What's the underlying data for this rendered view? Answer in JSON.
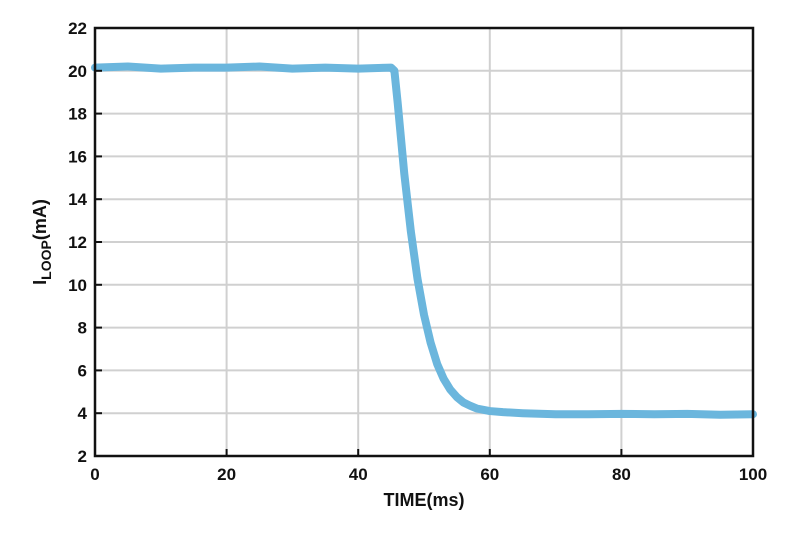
{
  "chart_data": {
    "type": "line",
    "title": "",
    "xlabel": "TIME(ms)",
    "ylabel_main": "I",
    "ylabel_sub": "LOOP",
    "ylabel_unit": "(mA)",
    "xlim": [
      0,
      100
    ],
    "ylim": [
      2,
      22
    ],
    "xticks": [
      0,
      20,
      40,
      60,
      80,
      100
    ],
    "yticks": [
      2,
      4,
      6,
      8,
      10,
      12,
      14,
      16,
      18,
      20,
      22
    ],
    "grid": true,
    "line_color": "#6bb6dd",
    "series": [
      {
        "x": [
          0,
          5,
          10,
          15,
          20,
          25,
          30,
          35,
          40,
          45,
          45.5,
          46,
          47,
          48,
          49,
          50,
          51,
          52,
          53,
          54,
          55,
          56,
          57,
          58,
          60,
          62,
          65,
          70,
          75,
          80,
          85,
          90,
          95,
          100
        ],
        "values": [
          20.15,
          20.2,
          20.1,
          20.15,
          20.15,
          20.2,
          20.1,
          20.15,
          20.1,
          20.15,
          20.0,
          18.5,
          15.2,
          12.5,
          10.3,
          8.6,
          7.3,
          6.3,
          5.6,
          5.1,
          4.75,
          4.5,
          4.35,
          4.22,
          4.1,
          4.05,
          4.0,
          3.95,
          3.95,
          3.97,
          3.95,
          3.97,
          3.93,
          3.95
        ]
      }
    ]
  }
}
